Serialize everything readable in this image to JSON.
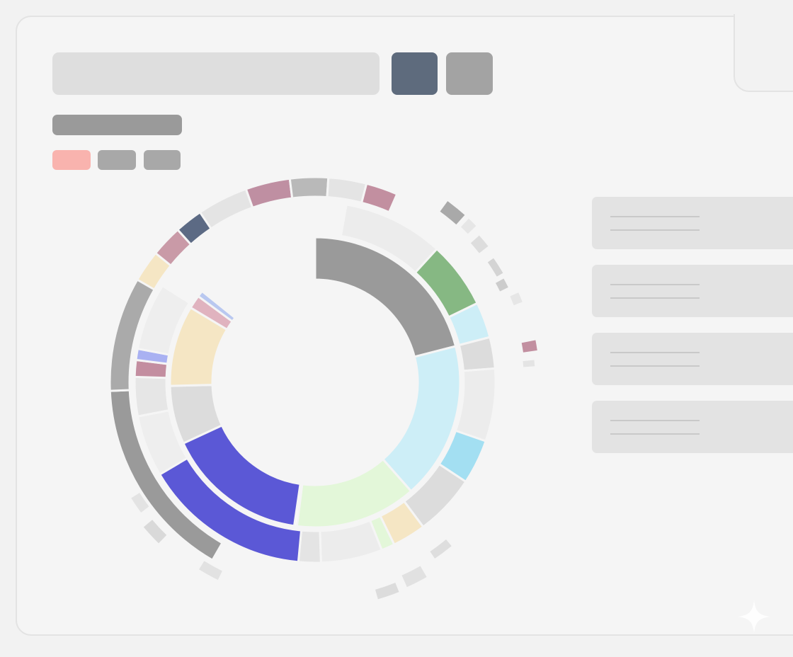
{
  "toolbar": {
    "search_placeholder": "",
    "primary_button_label": "",
    "secondary_button_label": ""
  },
  "title": "",
  "chips": [
    {
      "label": "",
      "color": "#f9b3ae"
    },
    {
      "label": "",
      "color": "#a8a8a8"
    },
    {
      "label": "",
      "color": "#a8a8a8"
    }
  ],
  "side_panels": [
    {
      "label": ""
    },
    {
      "label": ""
    },
    {
      "label": ""
    },
    {
      "label": ""
    }
  ],
  "chart_data": {
    "type": "sunburst",
    "title": "",
    "rings": [
      {
        "level": 1,
        "segments": [
          {
            "value": 0.21,
            "color": "#9a9a9a"
          },
          {
            "value": 0.175,
            "color": "#cdeef7"
          },
          {
            "value": 0.135,
            "color": "#e3f7d9"
          },
          {
            "value": 0.003,
            "color": "#ffffff"
          },
          {
            "value": 0.158,
            "color": "#5b58d6"
          },
          {
            "value": 0.065,
            "color": "#dcdcdc"
          },
          {
            "value": 0.09,
            "color": "#f5e6c4"
          },
          {
            "value": 0.015,
            "color": "#e0b3bf"
          },
          {
            "value": 0.007,
            "color": "#b9c8f0"
          }
        ]
      },
      {
        "level": 2,
        "segments": [
          {
            "value": 0.09,
            "color": "#ececec"
          },
          {
            "value": 0.06,
            "color": "#86b883"
          },
          {
            "value": 0.032,
            "color": "#cdeef7"
          },
          {
            "value": 0.028,
            "color": "#dcdcdc"
          },
          {
            "value": 0.065,
            "color": "#ececec"
          },
          {
            "value": 0.04,
            "color": "#a3dff2"
          },
          {
            "value": 0.055,
            "color": "#dcdcdc"
          },
          {
            "value": 0.03,
            "color": "#f5e6c4"
          },
          {
            "value": 0.012,
            "color": "#e3f7d9"
          },
          {
            "value": 0.055,
            "color": "#ececec"
          },
          {
            "value": 0.02,
            "color": "#e4e4e4"
          },
          {
            "value": 0.15,
            "color": "#5b58d6"
          },
          {
            "value": 0.055,
            "color": "#eeeeee"
          },
          {
            "value": 0.035,
            "color": "#e6e6e6"
          },
          {
            "value": 0.015,
            "color": "#c38ea0"
          },
          {
            "value": 0.01,
            "color": "#a9b1f2"
          },
          {
            "value": 0.06,
            "color": "#eeeeee"
          }
        ]
      },
      {
        "level": 3,
        "segments": [
          {
            "value": 0.16,
            "color": "#9a9a9a"
          },
          {
            "value": 0.09,
            "color": "#aaaaaa"
          },
          {
            "value": 0.025,
            "color": "#f5e6c4"
          },
          {
            "value": 0.025,
            "color": "#c99aa7"
          },
          {
            "value": 0.022,
            "color": "#5c6a84"
          },
          {
            "value": 0.04,
            "color": "#e4e4e4"
          },
          {
            "value": 0.035,
            "color": "#bf8fa2"
          },
          {
            "value": 0.03,
            "color": "#b9b9b9"
          },
          {
            "value": 0.03,
            "color": "#e4e4e4"
          },
          {
            "value": 0.025,
            "color": "#c28fa0"
          }
        ]
      }
    ]
  }
}
